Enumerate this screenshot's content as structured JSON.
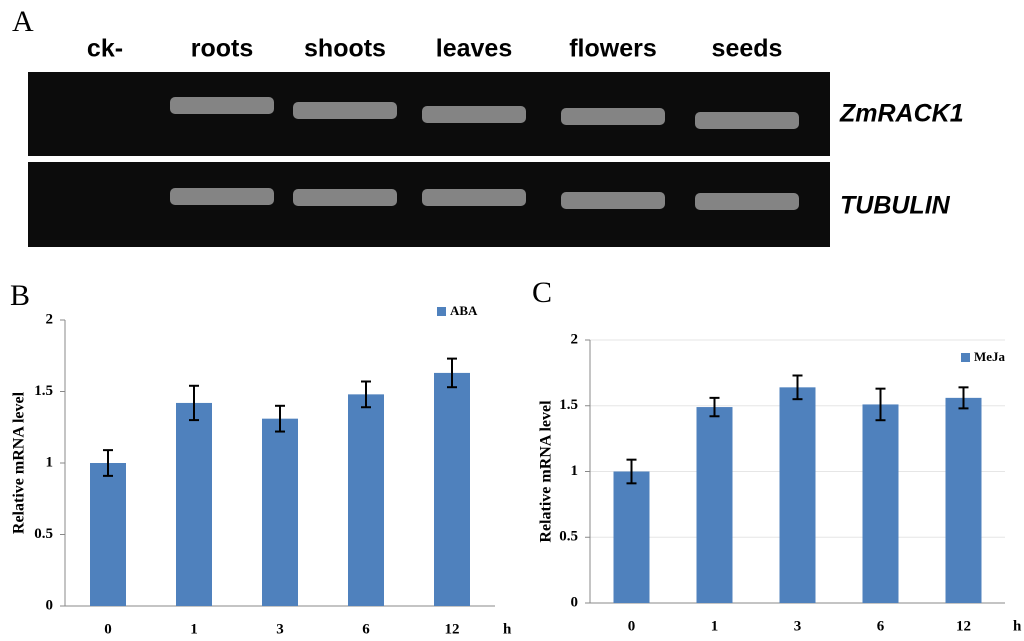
{
  "gel": {
    "panel": "A",
    "lanes": [
      "ck-",
      "roots",
      "shoots",
      "leaves",
      "flowers",
      "seeds"
    ],
    "genes": [
      "ZmRACK1",
      "TUBULIN"
    ]
  },
  "chart_data": [
    {
      "type": "bar",
      "panel": "B",
      "y_label": "Relative mRNA level",
      "x_label": "h",
      "categories": [
        "0",
        "1",
        "3",
        "6",
        "12"
      ],
      "series": [
        {
          "name": "ABA",
          "color": "#4f81bd",
          "values": [
            1.0,
            1.42,
            1.31,
            1.48,
            1.63
          ],
          "errors": [
            0.09,
            0.12,
            0.09,
            0.09,
            0.1
          ]
        }
      ],
      "ylim": [
        0,
        2
      ],
      "yticks": [
        0,
        0.5,
        1,
        1.5,
        2
      ],
      "grid": false
    },
    {
      "type": "bar",
      "panel": "C",
      "y_label": "Relative mRNA level",
      "x_label": "h",
      "categories": [
        "0",
        "1",
        "3",
        "6",
        "12"
      ],
      "series": [
        {
          "name": "MeJa",
          "color": "#4f81bd",
          "values": [
            1.0,
            1.49,
            1.64,
            1.51,
            1.56
          ],
          "errors": [
            0.09,
            0.07,
            0.09,
            0.12,
            0.08
          ]
        }
      ],
      "ylim": [
        0,
        2
      ],
      "yticks": [
        0,
        0.5,
        1,
        1.5,
        2
      ],
      "grid": true
    }
  ]
}
